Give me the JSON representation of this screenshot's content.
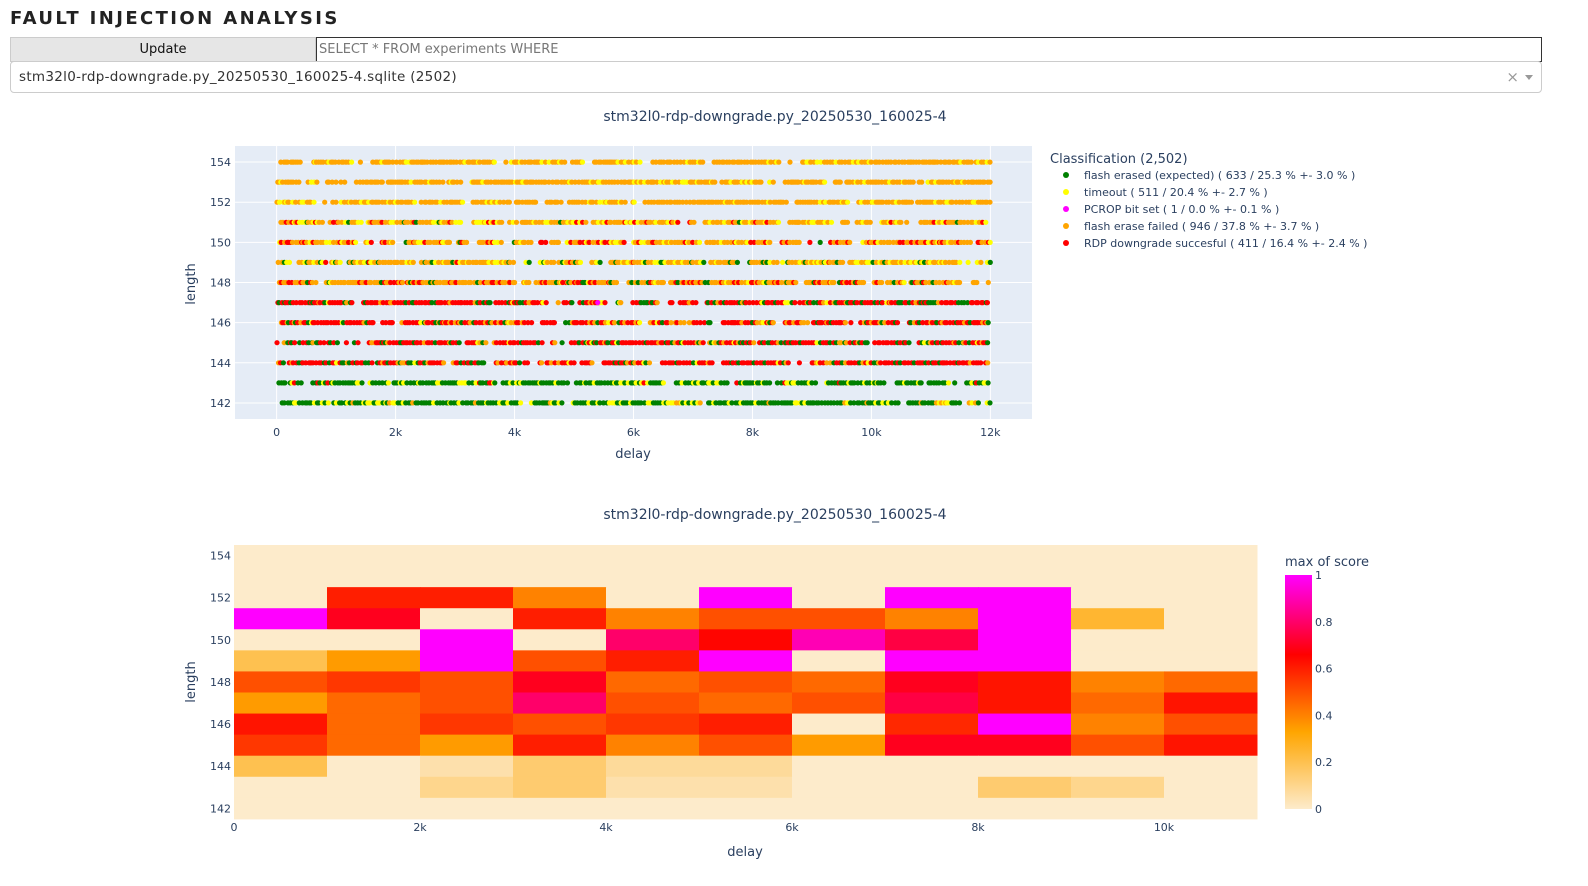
{
  "app": {
    "title": "FAULT INJECTION ANALYSIS"
  },
  "toolbar": {
    "update_label": "Update",
    "query_placeholder": "SELECT * FROM experiments WHERE",
    "query_value": ""
  },
  "file_select": {
    "value": "stm32l0-rdp-downgrade.py_20250530_160025-4.sqlite (2502)"
  },
  "scatter": {
    "title": "stm32l0-rdp-downgrade.py_20250530_160025-4",
    "legend_title": "Classification (2,502)",
    "legend": [
      {
        "label": "flash erased (expected) ( 633 / 25.3 % +- 3.0 % )",
        "color": "#008000"
      },
      {
        "label": "timeout ( 511 / 20.4 % +- 2.7 % )",
        "color": "#ffff00"
      },
      {
        "label": "PCROP bit set ( 1 / 0.0 % +- 0.1 % )",
        "color": "#ff00ff"
      },
      {
        "label": "flash erase failed ( 946 / 37.8 % +- 3.7 % )",
        "color": "#ffa500"
      },
      {
        "label": "RDP downgrade succesful ( 411 / 16.4 % +- 2.4 % )",
        "color": "#ff0000"
      }
    ]
  },
  "heatmap": {
    "title": "stm32l0-rdp-downgrade.py_20250530_160025-4",
    "colorbar_title": "max of score",
    "colorscale": [
      "#fdebcb",
      "#ffa500",
      "#ff0000",
      "#ff00ff"
    ]
  },
  "chart_data": [
    {
      "type": "scatter",
      "title": "stm32l0-rdp-downgrade.py_20250530_160025-4",
      "xlabel": "delay",
      "ylabel": "length",
      "xlim": [
        -700,
        12700
      ],
      "ylim": [
        141.2,
        154.8
      ],
      "x_ticks": [
        0,
        2000,
        4000,
        6000,
        8000,
        10000,
        12000
      ],
      "x_tick_labels": [
        "0",
        "2k",
        "4k",
        "6k",
        "8k",
        "10k",
        "12k"
      ],
      "y_ticks": [
        142,
        144,
        146,
        148,
        150,
        152,
        154
      ],
      "legend_placement": "right",
      "row_dominant_series": {
        "154": [
          3,
          1
        ],
        "153": [
          3,
          1
        ],
        "152": [
          3,
          1
        ],
        "151": [
          3,
          1,
          4,
          0
        ],
        "150": [
          3,
          4,
          1,
          0
        ],
        "149": [
          3,
          1,
          0,
          4
        ],
        "148": [
          3,
          4,
          0,
          1
        ],
        "147": [
          4,
          0,
          3,
          1
        ],
        "146": [
          4,
          3,
          0,
          1
        ],
        "145": [
          4,
          0,
          3,
          1
        ],
        "144": [
          4,
          0,
          3,
          1
        ],
        "143": [
          0,
          1,
          4
        ],
        "142": [
          0,
          1,
          3
        ]
      },
      "series": [
        {
          "name": "flash erased (expected)",
          "color": "#008000",
          "count": 633
        },
        {
          "name": "timeout",
          "color": "#ffff00",
          "count": 511
        },
        {
          "name": "PCROP bit set",
          "color": "#ff00ff",
          "count": 1
        },
        {
          "name": "flash erase failed",
          "color": "#ffa500",
          "count": 946
        },
        {
          "name": "RDP downgrade succesful",
          "color": "#ff0000",
          "count": 411
        }
      ]
    },
    {
      "type": "heatmap",
      "title": "stm32l0-rdp-downgrade.py_20250530_160025-4",
      "xlabel": "delay",
      "ylabel": "length",
      "x_bins": [
        0,
        1000,
        2000,
        3000,
        4000,
        5000,
        6000,
        7000,
        8000,
        9000,
        10000,
        11000
      ],
      "x_ticks": [
        0,
        2000,
        4000,
        6000,
        8000,
        10000
      ],
      "x_tick_labels": [
        "0",
        "2k",
        "4k",
        "6k",
        "8k",
        "10k"
      ],
      "y": [
        154,
        153,
        152,
        151,
        150,
        149,
        148,
        147,
        146,
        145,
        144,
        143,
        142
      ],
      "y_ticks": [
        142,
        144,
        146,
        148,
        150,
        152,
        154
      ],
      "colorbar_title": "max of score",
      "colorbar_ticks": [
        0,
        0.2,
        0.4,
        0.6,
        0.8,
        1
      ],
      "z": [
        [
          0,
          0,
          0,
          0,
          0,
          0,
          0,
          0,
          0,
          0,
          0
        ],
        [
          0,
          0,
          0,
          0,
          0,
          0,
          0,
          0,
          0,
          0,
          0
        ],
        [
          0,
          0.6,
          0.6,
          0.4,
          0,
          1,
          0,
          1,
          1,
          0,
          0
        ],
        [
          1,
          0.7,
          0,
          0.6,
          0.4,
          0.5,
          0.5,
          0.4,
          1,
          0.25,
          0
        ],
        [
          0,
          0,
          1,
          0,
          0.8,
          0.65,
          0.9,
          0.75,
          1,
          0,
          0
        ],
        [
          0.2,
          0.35,
          1,
          0.5,
          0.6,
          1,
          0,
          1,
          1,
          0,
          0
        ],
        [
          0.5,
          0.55,
          0.5,
          0.7,
          0.45,
          0.5,
          0.45,
          0.7,
          0.62,
          0.4,
          0.45
        ],
        [
          0.35,
          0.45,
          0.5,
          0.8,
          0.5,
          0.45,
          0.5,
          0.75,
          0.62,
          0.45,
          0.62
        ],
        [
          0.62,
          0.45,
          0.55,
          0.5,
          0.55,
          0.6,
          0,
          0.58,
          1,
          0.4,
          0.5
        ],
        [
          0.55,
          0.45,
          0.35,
          0.6,
          0.4,
          0.5,
          0.35,
          0.7,
          0.7,
          0.5,
          0.62
        ],
        [
          0.2,
          0,
          0.05,
          0.15,
          0.08,
          0.08,
          0,
          0,
          0,
          0,
          0
        ],
        [
          0,
          0,
          0.1,
          0.15,
          0.05,
          0.05,
          0,
          0,
          0.15,
          0.1,
          0
        ],
        [
          0,
          0,
          0,
          0,
          0,
          0,
          0,
          0,
          0,
          0,
          0
        ]
      ]
    }
  ]
}
